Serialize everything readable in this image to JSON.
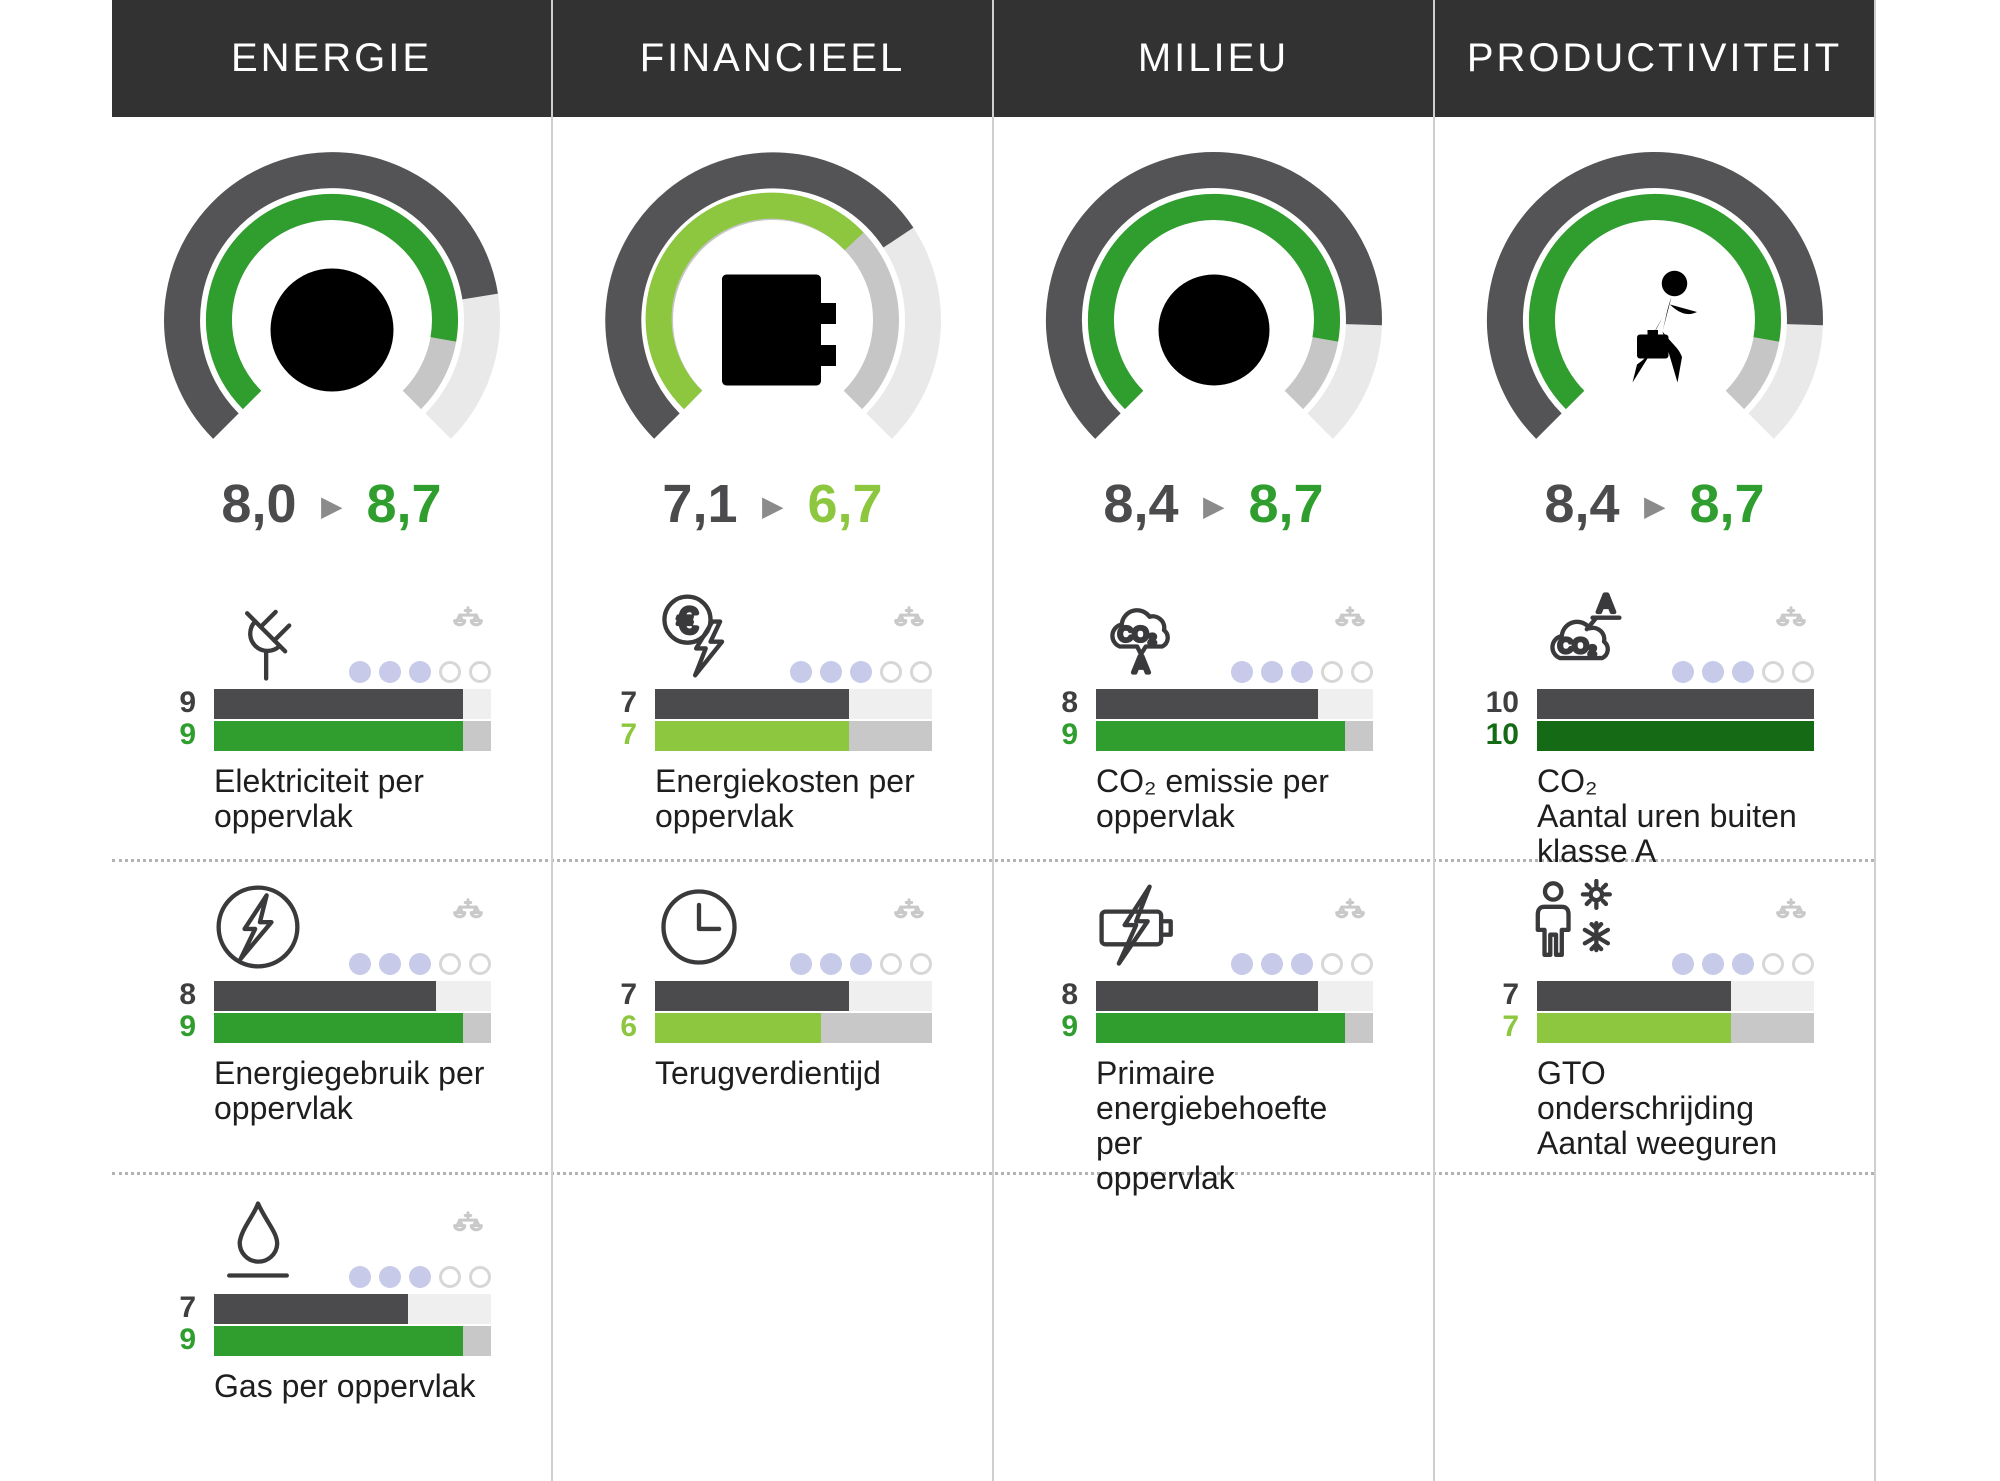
{
  "ui": {
    "arrow_icon": "▶",
    "scales_icon": "scales",
    "rating_total": 5,
    "bar_max": 10,
    "colors": {
      "header_bg": "#323232",
      "header_text": "#ffffff",
      "dark_bar": "#4b4b4d",
      "gauge_dark": "#545456",
      "gauge_outer_track": "#e9e9e9",
      "gauge_inner_track": "#c6c6c6",
      "bar_top_track": "#efefef",
      "bar_bottom_track": "#c8c8c8",
      "dot_filled": "#c7cae8",
      "dot_empty_border": "#d7d7d7",
      "scales_gray": "#c9c9c9",
      "green": "#2f9e2e",
      "lime": "#8dc63f",
      "dark_green": "#156a15"
    }
  },
  "columns": [
    {
      "header": "ENERGIE",
      "gauge": {
        "icon": "bolt-circle",
        "old_label": "8,0",
        "new_label": "8,7",
        "old_value": 8.0,
        "new_value": 8.7,
        "accent": "#2f9e2e"
      },
      "metrics": [
        {
          "icon": "plug",
          "rating": 3,
          "old": 9,
          "new": 9,
          "accent": "#2f9e2e",
          "label": "Elektriciteit per\noppervlak"
        },
        {
          "icon": "bolt-circle",
          "rating": 3,
          "old": 8,
          "new": 9,
          "accent": "#2f9e2e",
          "label": "Energiegebruik per\noppervlak"
        },
        {
          "icon": "flame",
          "rating": 3,
          "old": 7,
          "new": 9,
          "accent": "#2f9e2e",
          "label": "Gas per oppervlak"
        }
      ]
    },
    {
      "header": "FINANCIEEL",
      "gauge": {
        "icon": "safe-euro",
        "old_label": "7,1",
        "new_label": "6,7",
        "old_value": 7.1,
        "new_value": 6.7,
        "accent": "#8dc63f"
      },
      "metrics": [
        {
          "icon": "euro-bolt",
          "rating": 3,
          "old": 7,
          "new": 7,
          "accent": "#8dc63f",
          "label": "Energiekosten per\noppervlak"
        },
        {
          "icon": "clock",
          "rating": 3,
          "old": 7,
          "new": 6,
          "accent": "#8dc63f",
          "label": "Terugverdientijd"
        }
      ]
    },
    {
      "header": "MILIEU",
      "gauge": {
        "icon": "globe",
        "old_label": "8,4",
        "new_label": "8,7",
        "old_value": 8.4,
        "new_value": 8.7,
        "accent": "#2f9e2e"
      },
      "metrics": [
        {
          "icon": "co2-cloud",
          "rating": 3,
          "old": 8,
          "new": 9,
          "accent": "#2f9e2e",
          "label": "CO₂ emissie per\noppervlak"
        },
        {
          "icon": "battery-bolt",
          "rating": 3,
          "old": 8,
          "new": 9,
          "accent": "#2f9e2e",
          "label": "Primaire\nenergiebehoefte per\noppervlak"
        }
      ]
    },
    {
      "header": "PRODUCTIVITEIT",
      "gauge": {
        "icon": "person-briefcase",
        "old_label": "8,4",
        "new_label": "8,7",
        "old_value": 8.4,
        "new_value": 8.7,
        "accent": "#2f9e2e"
      },
      "metrics": [
        {
          "icon": "co2-cloud-a",
          "rating": 3,
          "old": 10,
          "new": 10,
          "accent": "#156a15",
          "label": "CO₂\nAantal uren buiten\nklasse A"
        },
        {
          "icon": "person-sun-snow",
          "rating": 3,
          "old": 7,
          "new": 7,
          "accent": "#8dc63f",
          "label": "GTO\nonderschrijding\nAantal weeguren"
        }
      ]
    }
  ],
  "chart_data": [
    {
      "type": "gauge",
      "title": "ENERGIE",
      "old": 8.0,
      "new": 8.7,
      "max": 10,
      "bars": {
        "categories": [
          "Elektriciteit per oppervlak",
          "Energiegebruik per oppervlak",
          "Gas per oppervlak"
        ],
        "series": [
          {
            "name": "old",
            "values": [
              9,
              8,
              7
            ]
          },
          {
            "name": "new",
            "values": [
              9,
              9,
              9
            ]
          }
        ],
        "ratings_filled_of_5": [
          3,
          3,
          3
        ],
        "ylim": [
          0,
          10
        ]
      }
    },
    {
      "type": "gauge",
      "title": "FINANCIEEL",
      "old": 7.1,
      "new": 6.7,
      "max": 10,
      "bars": {
        "categories": [
          "Energiekosten per oppervlak",
          "Terugverdientijd"
        ],
        "series": [
          {
            "name": "old",
            "values": [
              7,
              7
            ]
          },
          {
            "name": "new",
            "values": [
              7,
              6
            ]
          }
        ],
        "ratings_filled_of_5": [
          3,
          3
        ],
        "ylim": [
          0,
          10
        ]
      }
    },
    {
      "type": "gauge",
      "title": "MILIEU",
      "old": 8.4,
      "new": 8.7,
      "max": 10,
      "bars": {
        "categories": [
          "CO₂ emissie per oppervlak",
          "Primaire energiebehoefte per oppervlak"
        ],
        "series": [
          {
            "name": "old",
            "values": [
              8,
              8
            ]
          },
          {
            "name": "new",
            "values": [
              9,
              9
            ]
          }
        ],
        "ratings_filled_of_5": [
          3,
          3
        ],
        "ylim": [
          0,
          10
        ]
      }
    },
    {
      "type": "gauge",
      "title": "PRODUCTIVITEIT",
      "old": 8.4,
      "new": 8.7,
      "max": 10,
      "bars": {
        "categories": [
          "CO₂ Aantal uren buiten klasse A",
          "GTO onderschrijding Aantal weeguren"
        ],
        "series": [
          {
            "name": "old",
            "values": [
              10,
              7
            ]
          },
          {
            "name": "new",
            "values": [
              10,
              7
            ]
          }
        ],
        "ratings_filled_of_5": [
          3,
          3
        ],
        "ylim": [
          0,
          10
        ]
      }
    }
  ]
}
